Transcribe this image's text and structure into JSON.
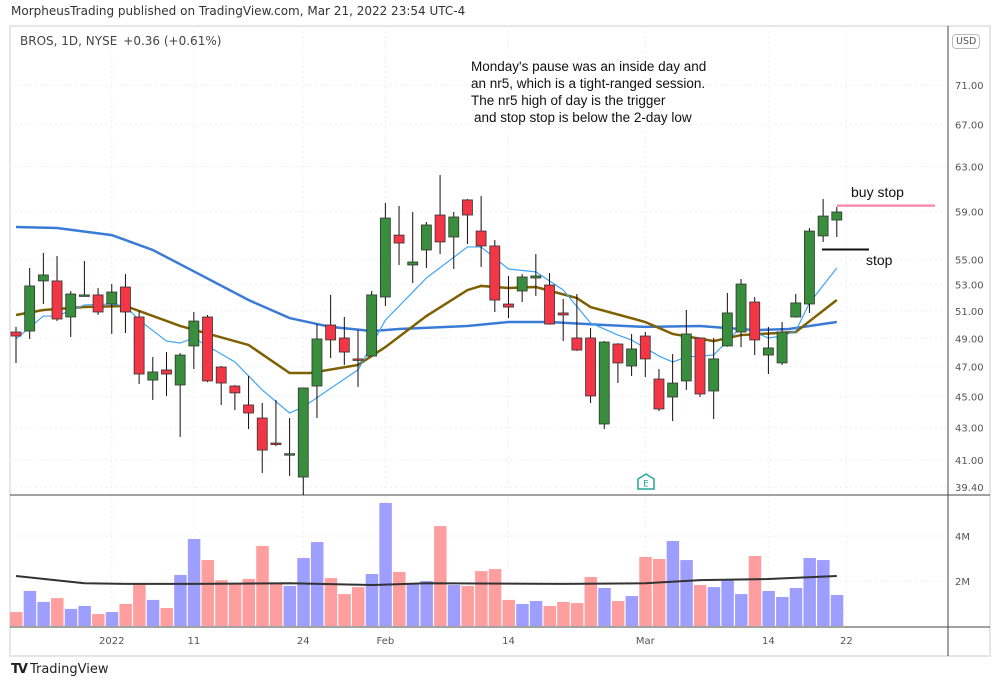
{
  "header": {
    "published": "MorpheusTrading published on TradingView.com, Mar 21, 2022 23:54 UTC-4"
  },
  "legend": {
    "symbol": "BROS, 1D, NYSE",
    "change": "+0.36 (+0.61%)"
  },
  "currency": "USD",
  "annotation": {
    "lines": [
      "Monday's pause was an inside day and",
      "an nr5, which is a tight-ranged session.",
      "The nr5 high of day is the trigger",
      "and stop stop is below the 2-day low"
    ],
    "buy_stop_label": "buy stop",
    "stop_label": "stop",
    "buy_stop_price": 59.5,
    "stop_price": 55.8
  },
  "earnings_marker": "E",
  "footer": {
    "logo_text": "TradingView"
  },
  "colors": {
    "up": "#388e3c",
    "down": "#f23645",
    "vol_up": "#9e9eff",
    "vol_down": "#ff9e9e",
    "ma10": "#42a5f5",
    "ma20": "#7f6000",
    "ma50": "#3a7bd5",
    "buy_stop": "#f48fb1"
  },
  "chart_data": {
    "type": "candlestick",
    "title": "BROS, 1D, NYSE",
    "price_scale": "log",
    "y_ticks": [
      71,
      67,
      63,
      59,
      55,
      53,
      51,
      49,
      47,
      45,
      43,
      41,
      39.4
    ],
    "y_tick_labels": [
      "71.00",
      "67.00",
      "63.00",
      "59.00",
      "55.00",
      "53.00",
      "51.00",
      "49.00",
      "47.00",
      "45.00",
      "43.00",
      "41.00",
      "39.40"
    ],
    "x_ticks": [
      {
        "index": 7,
        "label": "2022"
      },
      {
        "index": 13,
        "label": "11"
      },
      {
        "index": 21,
        "label": "24"
      },
      {
        "index": 27,
        "label": "Feb"
      },
      {
        "index": 36,
        "label": "14"
      },
      {
        "index": 46,
        "label": "Mar"
      },
      {
        "index": 55,
        "label": "14"
      },
      {
        "index": 60.7,
        "label": "22"
      }
    ],
    "ohlc": [
      [
        49.45,
        49.82,
        47.26,
        49.16
      ],
      [
        49.52,
        54.31,
        48.95,
        52.9
      ],
      [
        53.29,
        55.52,
        51.52,
        53.76
      ],
      [
        53.29,
        55.27,
        50.25,
        50.4
      ],
      [
        50.55,
        52.51,
        49.09,
        52.28
      ],
      [
        52.21,
        54.87,
        52.13,
        52.21
      ],
      [
        52.21,
        52.74,
        50.7,
        50.92
      ],
      [
        51.52,
        53.05,
        49.31,
        52.43
      ],
      [
        52.82,
        53.83,
        49.38,
        50.92
      ],
      [
        50.55,
        51.0,
        45.83,
        46.5
      ],
      [
        46.09,
        47.67,
        44.77,
        46.64
      ],
      [
        46.78,
        48.02,
        45.03,
        46.5
      ],
      [
        45.76,
        47.95,
        42.41,
        47.81
      ],
      [
        48.45,
        50.92,
        46.84,
        50.25
      ],
      [
        50.55,
        50.7,
        45.95,
        46.03
      ],
      [
        46.98,
        47.05,
        44.44,
        45.89
      ],
      [
        45.69,
        45.76,
        44.11,
        45.23
      ],
      [
        44.44,
        46.37,
        42.9,
        43.92
      ],
      [
        43.6,
        44.57,
        40.23,
        41.6
      ],
      [
        42.03,
        44.77,
        41.85,
        42.0
      ],
      [
        41.36,
        43.6,
        40.05,
        41.38
      ],
      [
        39.99,
        45.56,
        38.95,
        45.56
      ],
      [
        45.69,
        50.03,
        43.6,
        48.95
      ],
      [
        49.96,
        52.21,
        47.6,
        48.88
      ],
      [
        49.02,
        50.55,
        47.12,
        48.02
      ],
      [
        47.54,
        49.59,
        45.63,
        47.5
      ],
      [
        47.74,
        52.51,
        47.7,
        52.21
      ],
      [
        52.05,
        59.73,
        51.37,
        58.43
      ],
      [
        56.99,
        59.47,
        54.55,
        56.33
      ],
      [
        54.55,
        58.95,
        53.13,
        54.79
      ],
      [
        55.76,
        58.09,
        54.31,
        57.84
      ],
      [
        58.69,
        62.23,
        55.43,
        56.42
      ],
      [
        56.83,
        58.95,
        54.23,
        58.52
      ],
      [
        60.0,
        60.08,
        56.25,
        58.69
      ],
      [
        57.33,
        60.34,
        54.39,
        56.09
      ],
      [
        56.09,
        56.58,
        50.92,
        51.82
      ],
      [
        51.52,
        53.68,
        50.47,
        51.29
      ],
      [
        52.51,
        53.83,
        51.67,
        53.6
      ],
      [
        53.52,
        55.43,
        52.13,
        53.68
      ],
      [
        52.97,
        53.91,
        49.98,
        50.03
      ],
      [
        50.85,
        51.9,
        48.8,
        50.7
      ],
      [
        49.02,
        52.28,
        48.1,
        48.16
      ],
      [
        49.02,
        49.74,
        44.57,
        45.03
      ],
      [
        43.22,
        48.8,
        42.9,
        48.73
      ],
      [
        48.59,
        48.65,
        45.89,
        47.26
      ],
      [
        47.05,
        49.31,
        46.37,
        48.24
      ],
      [
        49.16,
        49.45,
        46.3,
        47.54
      ],
      [
        46.16,
        46.84,
        44.05,
        44.18
      ],
      [
        44.96,
        47.88,
        43.41,
        45.89
      ],
      [
        46.03,
        51.07,
        45.43,
        49.31
      ],
      [
        49.02,
        49.05,
        44.96,
        45.16
      ],
      [
        45.36,
        49.02,
        43.53,
        47.54
      ],
      [
        48.45,
        52.36,
        48.4,
        50.85
      ],
      [
        49.45,
        53.44,
        48.37,
        53.05
      ],
      [
        51.67,
        52.05,
        47.81,
        48.88
      ],
      [
        47.81,
        49.82,
        46.5,
        48.31
      ],
      [
        47.26,
        50.18,
        47.12,
        49.45
      ],
      [
        50.55,
        52.28,
        50.5,
        51.6
      ],
      [
        51.52,
        57.58,
        50.85,
        57.33
      ],
      [
        56.92,
        60.08,
        56.42,
        58.6
      ],
      [
        58.26,
        59.38,
        56.83,
        58.95
      ]
    ],
    "ma10": [
      [
        0,
        48.95
      ],
      [
        2,
        50.62
      ],
      [
        3,
        50.62
      ],
      [
        5,
        51.45
      ],
      [
        7,
        51.52
      ],
      [
        8,
        51.37
      ],
      [
        9,
        50.32
      ],
      [
        11,
        48.8
      ],
      [
        12,
        48.66
      ],
      [
        13,
        49.02
      ],
      [
        16,
        47.33
      ],
      [
        18,
        45.43
      ],
      [
        20,
        43.92
      ],
      [
        21,
        44.31
      ],
      [
        24,
        46.16
      ],
      [
        25,
        46.78
      ],
      [
        27,
        50.32
      ],
      [
        29,
        52.43
      ],
      [
        30,
        53.52
      ],
      [
        33,
        56.01
      ],
      [
        34,
        56.01
      ],
      [
        36,
        54.23
      ],
      [
        38,
        54.0
      ],
      [
        40,
        52.59
      ],
      [
        42,
        50.11
      ],
      [
        44,
        49.23
      ],
      [
        45,
        48.88
      ],
      [
        47,
        47.74
      ],
      [
        48,
        47.33
      ],
      [
        49,
        47.67
      ],
      [
        51,
        47.81
      ],
      [
        53,
        49.82
      ],
      [
        55,
        49.02
      ],
      [
        56,
        49.16
      ],
      [
        57,
        49.52
      ],
      [
        58,
        51.6
      ],
      [
        60,
        54.31
      ]
    ],
    "ma20": [
      [
        0,
        50.7
      ],
      [
        2,
        51.07
      ],
      [
        5,
        51.29
      ],
      [
        8,
        51.37
      ],
      [
        12,
        49.89
      ],
      [
        17,
        48.52
      ],
      [
        20,
        46.57
      ],
      [
        21.5,
        46.57
      ],
      [
        25,
        47.12
      ],
      [
        27,
        48.37
      ],
      [
        30,
        50.62
      ],
      [
        33,
        52.58
      ],
      [
        34,
        52.9
      ],
      [
        36,
        52.74
      ],
      [
        38,
        52.82
      ],
      [
        41,
        51.97
      ],
      [
        42,
        51.29
      ],
      [
        46,
        50.18
      ],
      [
        48,
        49.31
      ],
      [
        51,
        48.8
      ],
      [
        53,
        49.23
      ],
      [
        57,
        49.45
      ],
      [
        58.3,
        50.47
      ],
      [
        60,
        51.82
      ]
    ],
    "ma50": [
      [
        0,
        57.67
      ],
      [
        3,
        57.58
      ],
      [
        7,
        56.99
      ],
      [
        10,
        55.76
      ],
      [
        13.5,
        53.76
      ],
      [
        17,
        51.82
      ],
      [
        20,
        50.47
      ],
      [
        23,
        49.82
      ],
      [
        26,
        49.52
      ],
      [
        28,
        49.67
      ],
      [
        33,
        49.89
      ],
      [
        36,
        50.18
      ],
      [
        39,
        50.18
      ],
      [
        43,
        49.96
      ],
      [
        46,
        49.82
      ],
      [
        50,
        49.89
      ],
      [
        54,
        49.59
      ],
      [
        56.5,
        49.67
      ],
      [
        60,
        50.18
      ]
    ],
    "volume_ticks": [
      {
        "value": 4,
        "label": "4M"
      },
      {
        "value": 2,
        "label": "2M"
      }
    ],
    "volume_millions": [
      0.62,
      1.56,
      1.07,
      1.24,
      0.76,
      0.89,
      0.53,
      0.62,
      0.98,
      1.87,
      1.16,
      0.8,
      2.27,
      3.87,
      2.93,
      2.04,
      1.87,
      2.09,
      3.56,
      1.87,
      1.78,
      3.02,
      3.73,
      2.13,
      1.42,
      1.73,
      2.31,
      5.47,
      2.4,
      1.87,
      2.0,
      4.44,
      1.82,
      1.78,
      2.44,
      2.53,
      1.16,
      0.98,
      1.11,
      0.89,
      1.07,
      1.02,
      2.18,
      1.69,
      1.11,
      1.33,
      3.07,
      2.98,
      3.78,
      2.93,
      1.82,
      1.73,
      2.09,
      1.42,
      3.11,
      1.56,
      1.29,
      1.69,
      3.02,
      2.93,
      1.38
    ],
    "volume_ma": [
      [
        0,
        2.22
      ],
      [
        5,
        1.9
      ],
      [
        8,
        1.87
      ],
      [
        13,
        1.87
      ],
      [
        20,
        1.9
      ],
      [
        26,
        1.82
      ],
      [
        30,
        1.9
      ],
      [
        40,
        1.87
      ],
      [
        46,
        1.9
      ],
      [
        50,
        2.04
      ],
      [
        55,
        2.09
      ],
      [
        60,
        2.22
      ]
    ]
  }
}
